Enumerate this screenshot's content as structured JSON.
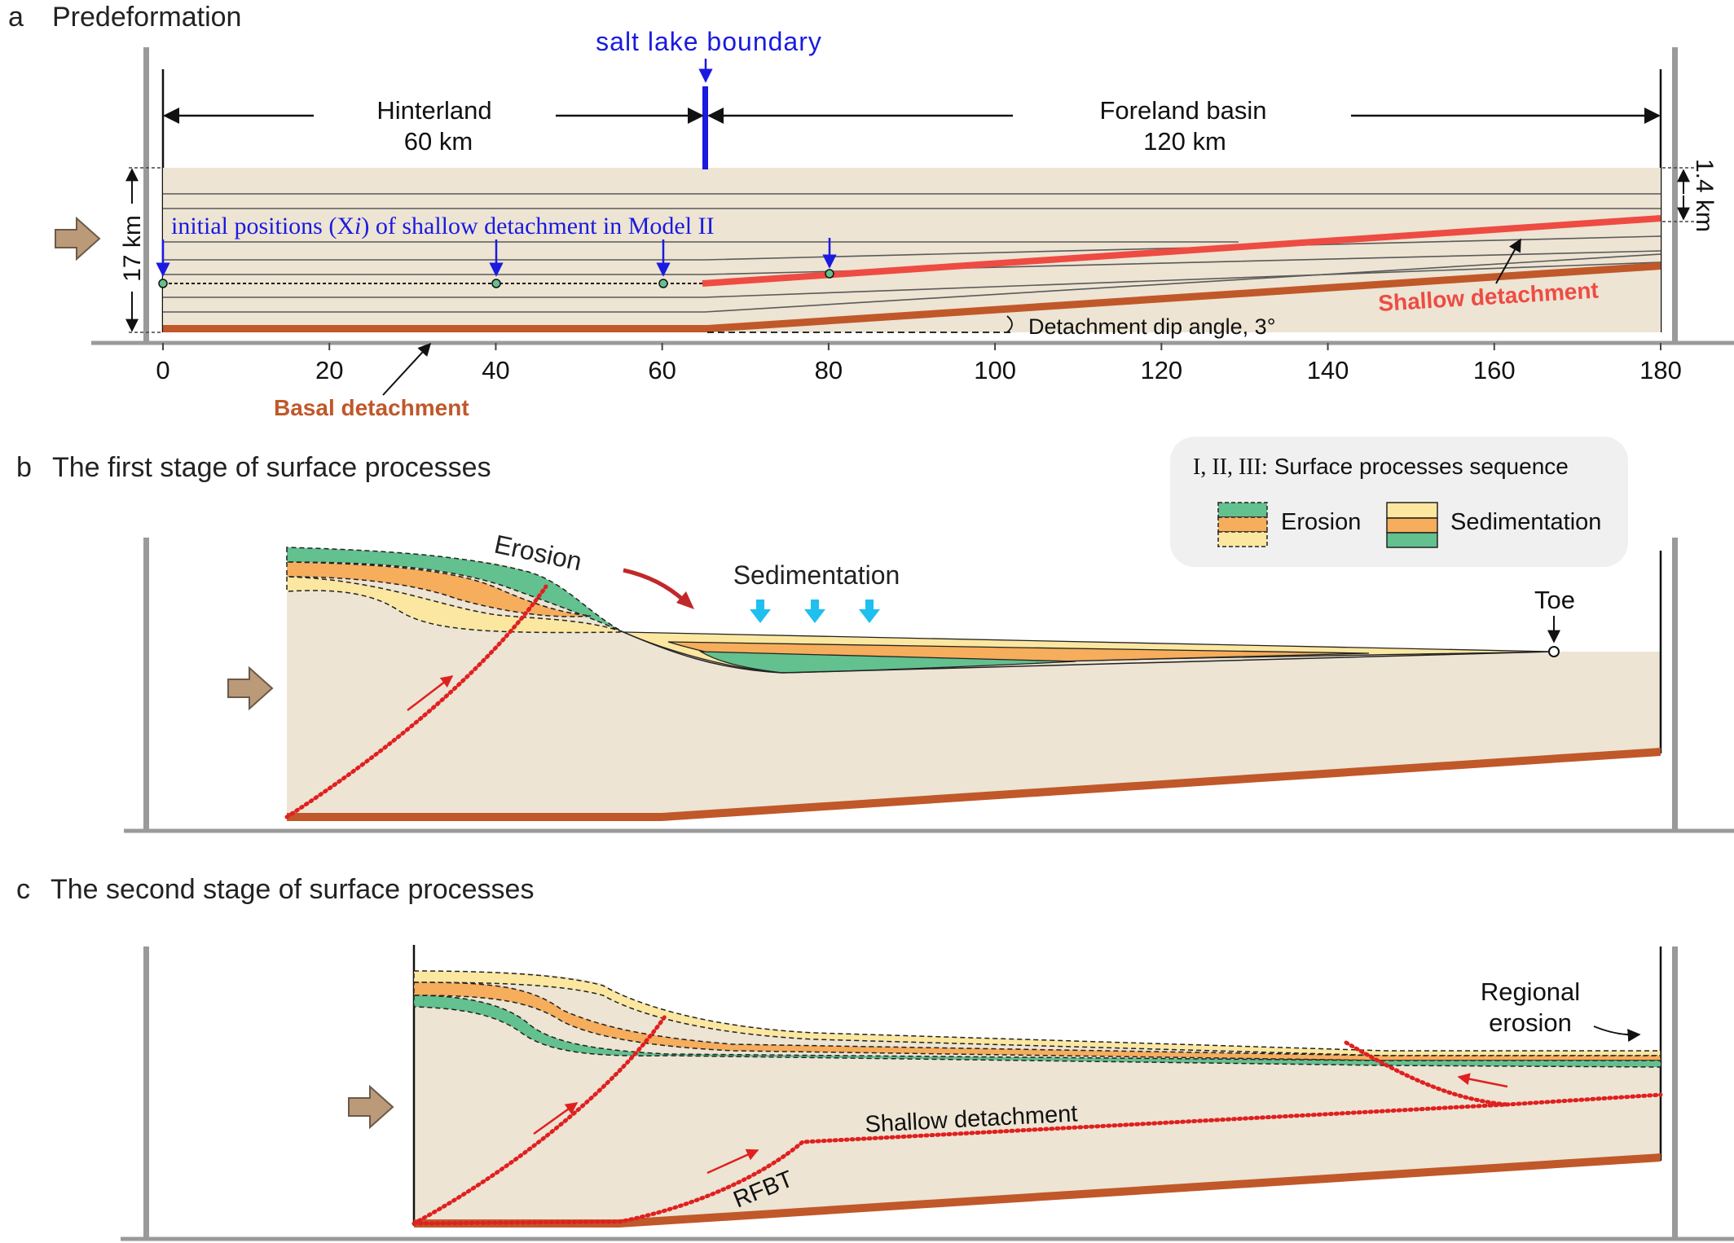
{
  "panel_a": {
    "letter": "a",
    "title": "Predeformation",
    "salt_lake_label": "salt lake boundary",
    "hinterland_label": "Hinterland",
    "hinterland_length": "60 km",
    "foreland_label": "Foreland basin",
    "foreland_length": "120 km",
    "thickness_left": "17 km",
    "thickness_right": "1.4 km",
    "initial_positions_label": "initial positions (X",
    "initial_positions_italic": "i",
    "initial_positions_rest": ") of shallow detachment in Model II",
    "shallow_detachment_label": "Shallow detachment",
    "basal_detachment_label": "Basal detachment",
    "dip_label": "Detachment dip angle, 3°",
    "axis_ticks": [
      "0",
      "20",
      "40",
      "60",
      "80",
      "100",
      "120",
      "140",
      "160",
      "180"
    ],
    "marker_positions_km": [
      0,
      40,
      60,
      80
    ]
  },
  "panel_b": {
    "letter": "b",
    "title": "The first stage of surface processes",
    "erosion_label": "Erosion",
    "sedimentation_label": "Sedimentation",
    "toe_label": "Toe"
  },
  "legend": {
    "title_roman": "I, II, III:",
    "title_rest": "Surface processes sequence",
    "erosion": "Erosion",
    "sedimentation": "Sedimentation"
  },
  "panel_c": {
    "letter": "c",
    "title": "The second stage of surface processes",
    "regional_erosion_line1": "Regional",
    "regional_erosion_line2": "erosion",
    "shallow_detachment_label": "Shallow detachment",
    "rfbt_label": "RFBT"
  },
  "colors": {
    "rock": "#ede4d3",
    "layer_line": "#5a5a5a",
    "basal": "#c0582a",
    "shallow": "#ee4b43",
    "blue": "#1a1ae0",
    "green": "#63c08f",
    "orange": "#f6ad5c",
    "yellow": "#fbe7a0",
    "cyan": "#1fbfef",
    "arrow_fill": "#bb9a7a",
    "wall": "#9a9a9a"
  }
}
